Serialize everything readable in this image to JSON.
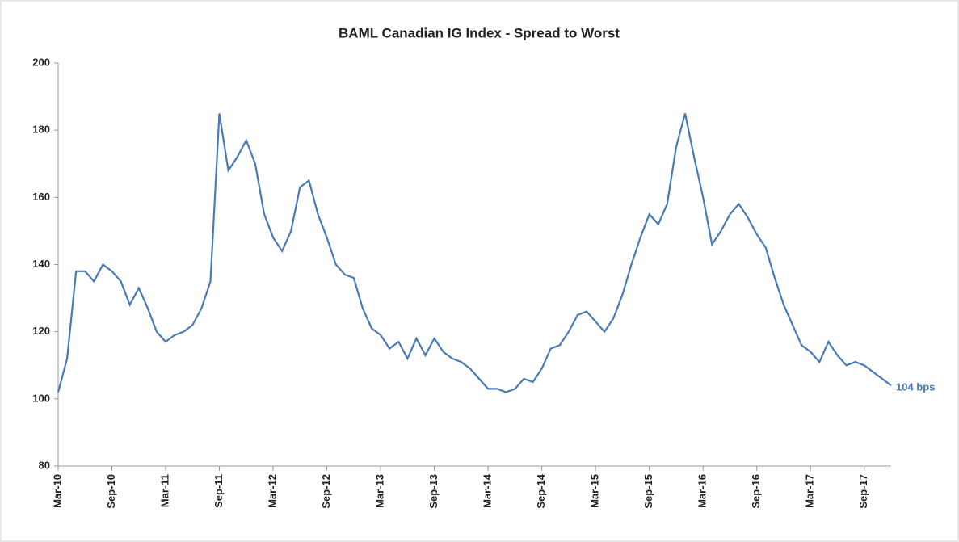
{
  "chart_data": {
    "type": "line",
    "title": "BAML Canadian IG Index - Spread to Worst",
    "x": [
      "2010-03",
      "2010-04",
      "2010-05",
      "2010-06",
      "2010-07",
      "2010-08",
      "2010-09",
      "2010-10",
      "2010-11",
      "2010-12",
      "2011-01",
      "2011-02",
      "2011-03",
      "2011-04",
      "2011-05",
      "2011-06",
      "2011-07",
      "2011-08",
      "2011-09",
      "2011-10",
      "2011-11",
      "2011-12",
      "2012-01",
      "2012-02",
      "2012-03",
      "2012-04",
      "2012-05",
      "2012-06",
      "2012-07",
      "2012-08",
      "2012-09",
      "2012-10",
      "2012-11",
      "2012-12",
      "2013-01",
      "2013-02",
      "2013-03",
      "2013-04",
      "2013-05",
      "2013-06",
      "2013-07",
      "2013-08",
      "2013-09",
      "2013-10",
      "2013-11",
      "2013-12",
      "2014-01",
      "2014-02",
      "2014-03",
      "2014-04",
      "2014-05",
      "2014-06",
      "2014-07",
      "2014-08",
      "2014-09",
      "2014-10",
      "2014-11",
      "2014-12",
      "2015-01",
      "2015-02",
      "2015-03",
      "2015-04",
      "2015-05",
      "2015-06",
      "2015-07",
      "2015-08",
      "2015-09",
      "2015-10",
      "2015-11",
      "2015-12",
      "2016-01",
      "2016-02",
      "2016-03",
      "2016-04",
      "2016-05",
      "2016-06",
      "2016-07",
      "2016-08",
      "2016-09",
      "2016-10",
      "2016-11",
      "2016-12",
      "2017-01",
      "2017-02",
      "2017-03",
      "2017-04",
      "2017-05",
      "2017-06",
      "2017-07",
      "2017-08",
      "2017-09",
      "2017-10",
      "2017-11",
      "2017-12"
    ],
    "series": [
      {
        "name": "Spread to Worst",
        "color": "#4a7ab5",
        "values": [
          102,
          112,
          138,
          138,
          135,
          140,
          138,
          135,
          128,
          133,
          127,
          120,
          117,
          119,
          120,
          122,
          127,
          135,
          185,
          168,
          172,
          177,
          170,
          155,
          148,
          144,
          150,
          163,
          165,
          155,
          148,
          140,
          137,
          136,
          127,
          121,
          119,
          115,
          117,
          112,
          118,
          113,
          118,
          114,
          112,
          111,
          109,
          106,
          103,
          103,
          102,
          103,
          106,
          105,
          109,
          115,
          116,
          120,
          125,
          126,
          123,
          120,
          124,
          131,
          140,
          148,
          155,
          152,
          158,
          175,
          185,
          172,
          160,
          146,
          150,
          155,
          158,
          154,
          149,
          145,
          136,
          128,
          122,
          116,
          114,
          111,
          117,
          113,
          110,
          111,
          110,
          108,
          106,
          104
        ],
        "value_labels": [
          null,
          null,
          null,
          null,
          null,
          null,
          null,
          null,
          null,
          null,
          null,
          null,
          null,
          null,
          null,
          null,
          null,
          null,
          null,
          null,
          null,
          null,
          null,
          null,
          null,
          null,
          null,
          null,
          null,
          null,
          null,
          null,
          null,
          null,
          null,
          null,
          null,
          null,
          null,
          null,
          null,
          null,
          null,
          null,
          null,
          null,
          null,
          null,
          null,
          null,
          null,
          null,
          null,
          null,
          null,
          null,
          null,
          null,
          null,
          null,
          null,
          null,
          null,
          null,
          null,
          null,
          null,
          null,
          null,
          null,
          null,
          null,
          null,
          null,
          null,
          null,
          null,
          null,
          null,
          null,
          null,
          null,
          null,
          null,
          null,
          null,
          null,
          null,
          null,
          null,
          null,
          null,
          null,
          "104 bps"
        ]
      }
    ],
    "xlim": [
      "2010-03",
      "2017-12"
    ],
    "xticks": [
      {
        "value": "2010-03",
        "label": "Mar-10"
      },
      {
        "value": "2010-09",
        "label": "Sep-10"
      },
      {
        "value": "2011-03",
        "label": "Mar-11"
      },
      {
        "value": "2011-09",
        "label": "Sep-11"
      },
      {
        "value": "2012-03",
        "label": "Mar-12"
      },
      {
        "value": "2012-09",
        "label": "Sep-12"
      },
      {
        "value": "2013-03",
        "label": "Mar-13"
      },
      {
        "value": "2013-09",
        "label": "Sep-13"
      },
      {
        "value": "2014-03",
        "label": "Mar-14"
      },
      {
        "value": "2014-09",
        "label": "Sep-14"
      },
      {
        "value": "2015-03",
        "label": "Mar-15"
      },
      {
        "value": "2015-09",
        "label": "Sep-15"
      },
      {
        "value": "2016-03",
        "label": "Mar-16"
      },
      {
        "value": "2016-09",
        "label": "Sep-16"
      },
      {
        "value": "2017-03",
        "label": "Mar-17"
      },
      {
        "value": "2017-09",
        "label": "Sep-17"
      }
    ],
    "ylim": [
      80,
      200
    ],
    "yticks": [
      80,
      100,
      120,
      140,
      160,
      180,
      200
    ],
    "grid": false
  }
}
